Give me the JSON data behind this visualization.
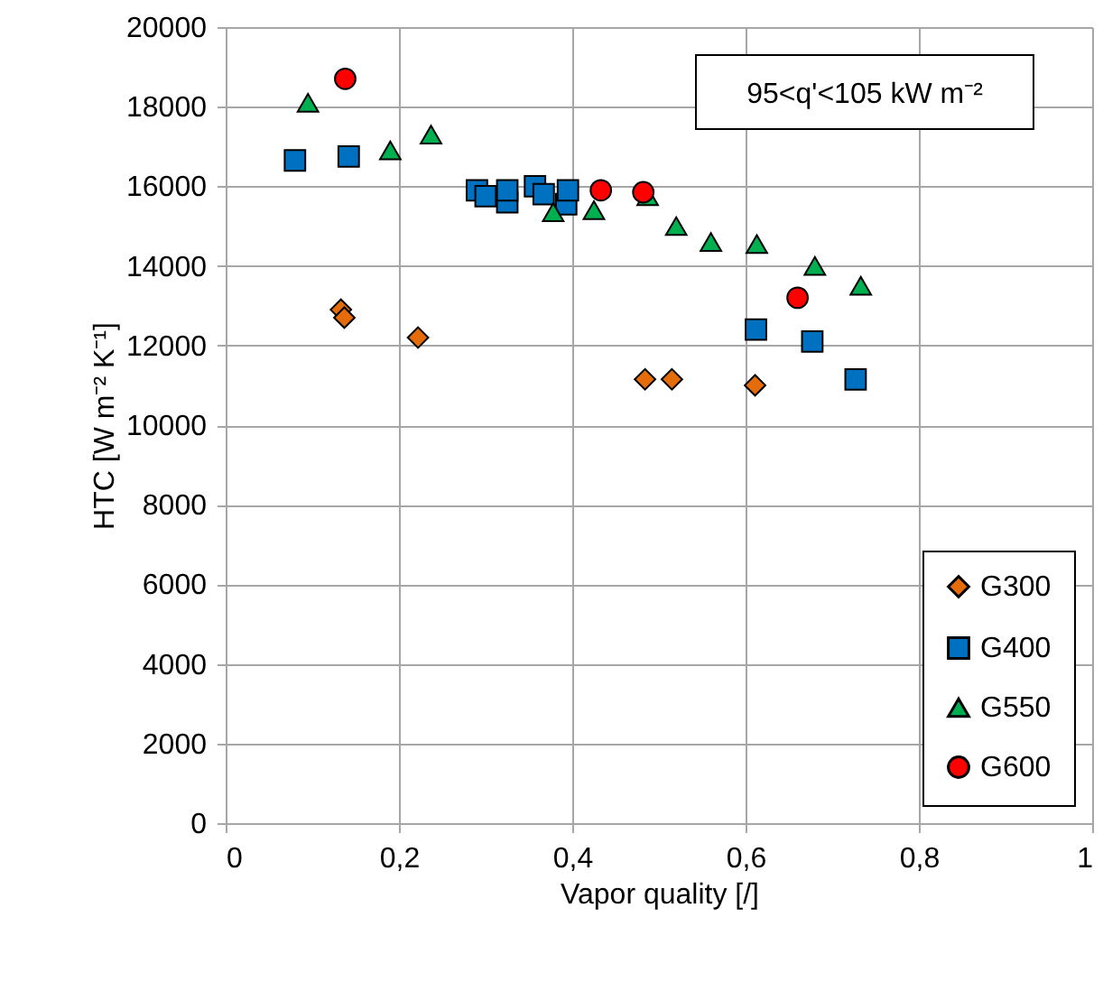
{
  "chart_data": {
    "type": "scatter",
    "xlabel": "Vapor quality [/]",
    "ylabel": "HTC [W m⁻² K⁻¹]",
    "xlim": [
      0,
      1
    ],
    "xticks": [
      0,
      {
        "value": 0.2,
        "label": "0,2"
      },
      {
        "value": 0.4,
        "label": "0,4"
      },
      {
        "value": 0.6,
        "label": "0,6"
      },
      {
        "value": 0.8,
        "label": "0,8"
      },
      1
    ],
    "ylim": [
      0,
      20000
    ],
    "yticks": [
      0,
      2000,
      4000,
      6000,
      8000,
      10000,
      12000,
      14000,
      16000,
      18000,
      20000
    ],
    "grid": true,
    "legend": "bottom right",
    "annotations": [
      "95<q'<105 kW m⁻²"
    ],
    "series": [
      {
        "name": "G300",
        "color": "#e46c0a",
        "marker": "diamond",
        "x": [
          0.133,
          0.137,
          0.222,
          0.484,
          0.515,
          0.611
        ],
        "values": [
          12900,
          12700,
          12200,
          11150,
          11150,
          11000
        ]
      },
      {
        "name": "G400",
        "color": "#0070c0",
        "marker": "square",
        "x": [
          0.08,
          0.142,
          0.29,
          0.3,
          0.325,
          0.325,
          0.357,
          0.367,
          0.393,
          0.395,
          0.612,
          0.677,
          0.727
        ],
        "values": [
          16650,
          16750,
          15900,
          15750,
          15600,
          15900,
          16000,
          15800,
          15550,
          15900,
          12400,
          12100,
          11150
        ]
      },
      {
        "name": "G550",
        "color": "#00b050",
        "marker": "triangle",
        "x": [
          0.095,
          0.19,
          0.237,
          0.378,
          0.425,
          0.487,
          0.52,
          0.56,
          0.613,
          0.68,
          0.733
        ],
        "values": [
          18100,
          16900,
          17300,
          15350,
          15400,
          15750,
          15000,
          14600,
          14550,
          14000,
          13500
        ]
      },
      {
        "name": "G600",
        "color": "#ff0000",
        "marker": "circle",
        "x": [
          0.138,
          0.433,
          0.482,
          0.66
        ],
        "values": [
          18700,
          15900,
          15850,
          13200
        ]
      }
    ]
  }
}
